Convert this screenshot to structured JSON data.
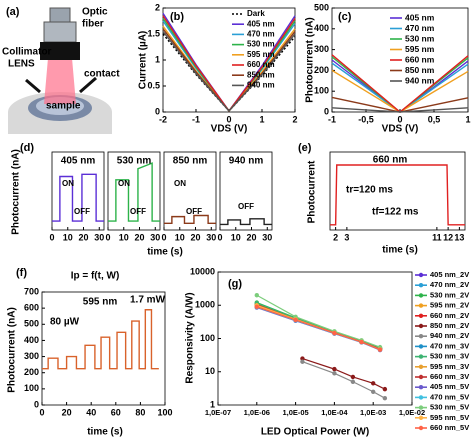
{
  "diagram": {
    "panel_label": "(a)",
    "optic_fiber": [
      "Optic",
      "fiber"
    ],
    "collimator": [
      "Collimator",
      "LENS"
    ],
    "contact": "contact",
    "sample": "sample"
  },
  "chart_data": [
    {
      "type": "line",
      "panel_label": "(b)",
      "y_label": "Current (µA)",
      "x_label": "VDS (V)",
      "x": [
        -2,
        -1,
        0,
        1,
        2
      ],
      "xlim": [
        -2,
        2
      ],
      "xticks": [
        -2,
        -1,
        0,
        1,
        2
      ],
      "ylim": [
        0,
        2
      ],
      "yticks": [
        0,
        0.5,
        1,
        1.5,
        2
      ],
      "grid": false,
      "series": [
        {
          "name": "Dark",
          "color": "#000000",
          "line_style": "dotted",
          "values": [
            1.5,
            0.72,
            0.02,
            0.7,
            1.45
          ]
        },
        {
          "name": "405 nm",
          "color": "#5b2fd6",
          "values": [
            1.9,
            0.91,
            0.02,
            0.89,
            1.85
          ]
        },
        {
          "name": "470 nm",
          "color": "#2a9fd6",
          "values": [
            1.75,
            0.84,
            0.02,
            0.82,
            1.7
          ]
        },
        {
          "name": "530 nm",
          "color": "#2db34a",
          "values": [
            1.8,
            0.86,
            0.02,
            0.84,
            1.75
          ]
        },
        {
          "name": "595 nm",
          "color": "#f0a020",
          "values": [
            1.65,
            0.79,
            0.02,
            0.77,
            1.6
          ]
        },
        {
          "name": "660 nm",
          "color": "#e02020",
          "values": [
            1.85,
            0.89,
            0.02,
            0.86,
            1.8
          ]
        },
        {
          "name": "850 nm",
          "color": "#8b3a1a",
          "values": [
            1.6,
            0.77,
            0.02,
            0.74,
            1.55
          ]
        },
        {
          "name": "940 nm",
          "color": "#555555",
          "values": [
            1.55,
            0.74,
            0.02,
            0.72,
            1.5
          ]
        }
      ]
    },
    {
      "type": "line",
      "panel_label": "(c)",
      "y_label": "Photocurrent (nA)",
      "x_label": "VDS (V)",
      "x": [
        -1,
        -0.5,
        0,
        0.5,
        1
      ],
      "xlim": [
        -1,
        1
      ],
      "xticks": [
        -1,
        {
          "value": -0.5,
          "label": "-0,5"
        },
        0,
        {
          "value": 0.5,
          "label": "0,5"
        },
        1
      ],
      "ylim": [
        0,
        500
      ],
      "yticks": [
        0,
        100,
        200,
        300,
        400,
        500
      ],
      "grid": false,
      "series": [
        {
          "name": "405 nm",
          "color": "#5b2fd6",
          "values": [
            250,
            125,
            0,
            120,
            245
          ]
        },
        {
          "name": "470 nm",
          "color": "#2a9fd6",
          "values": [
            235,
            118,
            0,
            115,
            230
          ]
        },
        {
          "name": "530 nm",
          "color": "#2db34a",
          "values": [
            265,
            132,
            0,
            130,
            260
          ]
        },
        {
          "name": "595 nm",
          "color": "#f0a020",
          "values": [
            200,
            100,
            0,
            98,
            195
          ]
        },
        {
          "name": "660 nm",
          "color": "#e02020",
          "values": [
            275,
            138,
            0,
            135,
            270
          ]
        },
        {
          "name": "850 nm",
          "color": "#8b3a1a",
          "values": [
            70,
            35,
            0,
            34,
            68
          ]
        },
        {
          "name": "940 nm",
          "color": "#555555",
          "values": [
            20,
            10,
            0,
            10,
            20
          ]
        }
      ]
    },
    {
      "type": "multi_line",
      "panel_label": "(d)",
      "y_label": "Photocurrent (nA)",
      "x_label": "time (s)",
      "subplots": [
        {
          "title": "405 nm",
          "color": "#5b2fd6",
          "xlim": [
            0,
            33
          ],
          "xticks": [
            0,
            10,
            20,
            30
          ],
          "ylim": [
            0,
            0.7
          ],
          "x": [
            0,
            5,
            5,
            13,
            13,
            19,
            19,
            28,
            28,
            33
          ],
          "values": [
            0.08,
            0.08,
            0.48,
            0.48,
            0.08,
            0.08,
            0.5,
            0.5,
            0.08,
            0.08
          ],
          "annotations": [
            "ON",
            "OFF"
          ]
        },
        {
          "title": "530 nm",
          "color": "#2db34a",
          "xlim": [
            0,
            33
          ],
          "xticks": [
            0,
            10,
            20,
            30
          ],
          "ylim": [
            0,
            0.7
          ],
          "x": [
            0,
            5,
            5,
            13,
            13,
            19,
            19,
            28,
            28,
            33
          ],
          "values": [
            0.08,
            0.08,
            0.45,
            0.45,
            0.08,
            0.08,
            0.55,
            0.6,
            0.08,
            0.08
          ],
          "annotations": [
            "ON",
            "OFF"
          ]
        },
        {
          "title": "850 nm",
          "color": "#8b3a1a",
          "xlim": [
            0,
            33
          ],
          "xticks": [
            0,
            10,
            20,
            30
          ],
          "ylim": [
            0,
            0.7
          ],
          "x": [
            0,
            5,
            5,
            13,
            13,
            19,
            19,
            28,
            28,
            33
          ],
          "values": [
            0.06,
            0.06,
            0.12,
            0.12,
            0.06,
            0.06,
            0.13,
            0.13,
            0.06,
            0.06
          ],
          "annotations": [
            "ON",
            "OFF"
          ]
        },
        {
          "title": "940 nm",
          "color": "#222222",
          "xlim": [
            0,
            33
          ],
          "xticks": [
            0,
            10,
            20,
            30
          ],
          "ylim": [
            0,
            0.7
          ],
          "x": [
            0,
            5,
            5,
            13,
            13,
            19,
            19,
            28,
            28,
            33
          ],
          "values": [
            0.05,
            0.05,
            0.09,
            0.09,
            0.05,
            0.05,
            0.1,
            0.1,
            0.05,
            0.05
          ],
          "annotations": [
            "OFF"
          ]
        }
      ]
    },
    {
      "type": "line",
      "panel_label": "(e)",
      "title": "660 nm",
      "y_label": "Photocurrent",
      "x_label": "time (s)",
      "xlim": [
        1.5,
        13.5
      ],
      "xticks": [
        2,
        3,
        11,
        12,
        13
      ],
      "ylim": [
        0,
        0.6
      ],
      "grid": false,
      "annotations": [
        "tr=120 ms",
        "tf=122 ms"
      ],
      "x": [
        1.5,
        2,
        2.1,
        11.9,
        12,
        13.5
      ],
      "series": [
        {
          "color": "#e02020",
          "values": [
            0.04,
            0.04,
            0.5,
            0.5,
            0.04,
            0.04
          ]
        }
      ]
    },
    {
      "type": "line",
      "panel_label": "(f)",
      "title": "Ip = f(t, W)",
      "subtitle": "595 nm",
      "y_label": "Photocurrent (nA)",
      "x_label": "time (s)",
      "annotations": [
        "80 µW",
        "1.7 mW"
      ],
      "xlim": [
        0,
        100
      ],
      "xticks": [
        0,
        20,
        40,
        60,
        80,
        100
      ],
      "ylim": [
        0,
        700
      ],
      "yticks": [
        0,
        100,
        200,
        300,
        400,
        500,
        600,
        700
      ],
      "grid": false,
      "x": [
        0,
        5,
        5,
        13,
        13,
        20,
        20,
        28,
        28,
        35,
        35,
        43,
        43,
        48,
        48,
        55,
        55,
        61,
        61,
        68,
        68,
        73,
        73,
        79,
        79,
        84,
        84,
        89,
        89,
        95
      ],
      "series": [
        {
          "color": "#d9622b",
          "values": [
            225,
            225,
            290,
            290,
            225,
            225,
            300,
            300,
            225,
            225,
            370,
            370,
            225,
            225,
            420,
            420,
            225,
            225,
            450,
            450,
            225,
            225,
            520,
            520,
            225,
            225,
            590,
            590,
            225,
            225
          ]
        }
      ]
    },
    {
      "type": "line",
      "panel_label": "(g)",
      "y_label": "Responsivity (A/W)",
      "x_label": "LED Optical Power (W)",
      "xlog": true,
      "ylog": true,
      "markers": true,
      "grid": false,
      "xlim": [
        1e-07,
        0.01
      ],
      "xticks": [
        {
          "value": 1e-07,
          "label": "1,0E-07"
        },
        {
          "value": 1e-06,
          "label": "1,0E-06"
        },
        {
          "value": 1e-05,
          "label": "1,0E-05"
        },
        {
          "value": 0.0001,
          "label": "1,0E-04"
        },
        {
          "value": 0.001,
          "label": "1,0E-03"
        },
        {
          "value": 0.01,
          "label": "1,0E-02"
        }
      ],
      "ylim": [
        1,
        10000
      ],
      "yticks": [
        1,
        10,
        100,
        1000,
        10000
      ],
      "x": [
        1e-06,
        1e-05,
        0.0001,
        0.0005,
        0.0015
      ],
      "series": [
        {
          "name": "405 nm_2V",
          "color": "#5b2fd6",
          "values": [
            950,
            370,
            150,
            80,
            48
          ]
        },
        {
          "name": "470 nm_2V",
          "color": "#2a9fd6",
          "values": [
            1000,
            390,
            155,
            82,
            50
          ]
        },
        {
          "name": "530 nm_2V",
          "color": "#2db34a",
          "values": [
            1200,
            420,
            160,
            85,
            52
          ]
        },
        {
          "name": "595 nm_2V",
          "color": "#f0a020",
          "values": [
            1100,
            400,
            150,
            80,
            48
          ]
        },
        {
          "name": "660 nm_2V",
          "color": "#e02020",
          "values": [
            1050,
            410,
            158,
            84,
            50
          ]
        },
        {
          "name": "850 nm_2V",
          "color": "#8b1a1a",
          "x": [
            1.5e-05,
            0.0001,
            0.0003,
            0.001,
            0.002
          ],
          "values": [
            25,
            12,
            7,
            4.5,
            3
          ]
        },
        {
          "name": "940 nm_2V",
          "color": "#888888",
          "x": [
            1.5e-05,
            0.0001,
            0.0003,
            0.001,
            0.002
          ],
          "values": [
            20,
            9,
            5,
            2.5,
            1.6
          ]
        },
        {
          "name": "470 nm_3V",
          "color": "#1e90c8",
          "values": [
            900,
            360,
            145,
            78,
            46
          ]
        },
        {
          "name": "530 nm_3V",
          "color": "#3cb371",
          "values": [
            1150,
            410,
            158,
            83,
            50
          ]
        },
        {
          "name": "595 nm_3V",
          "color": "#e8a030",
          "values": [
            1000,
            380,
            148,
            79,
            47
          ]
        },
        {
          "name": "660 nm_3V",
          "color": "#c03030",
          "values": [
            950,
            370,
            150,
            80,
            48
          ]
        },
        {
          "name": "405 nm_5V",
          "color": "#6a5acd",
          "values": [
            850,
            340,
            140,
            76,
            45
          ]
        },
        {
          "name": "470 nm_5V",
          "color": "#40c0e0",
          "values": [
            880,
            350,
            142,
            77,
            46
          ]
        },
        {
          "name": "530 nm_5V",
          "color": "#7ccd7c",
          "values": [
            2000,
            450,
            165,
            88,
            55
          ]
        },
        {
          "name": "595 nm_5V",
          "color": "#ffb347",
          "values": [
            980,
            375,
            147,
            79,
            47
          ]
        },
        {
          "name": "660 nm_5V",
          "color": "#ff6347",
          "values": [
            900,
            360,
            145,
            78,
            46
          ]
        }
      ]
    }
  ]
}
